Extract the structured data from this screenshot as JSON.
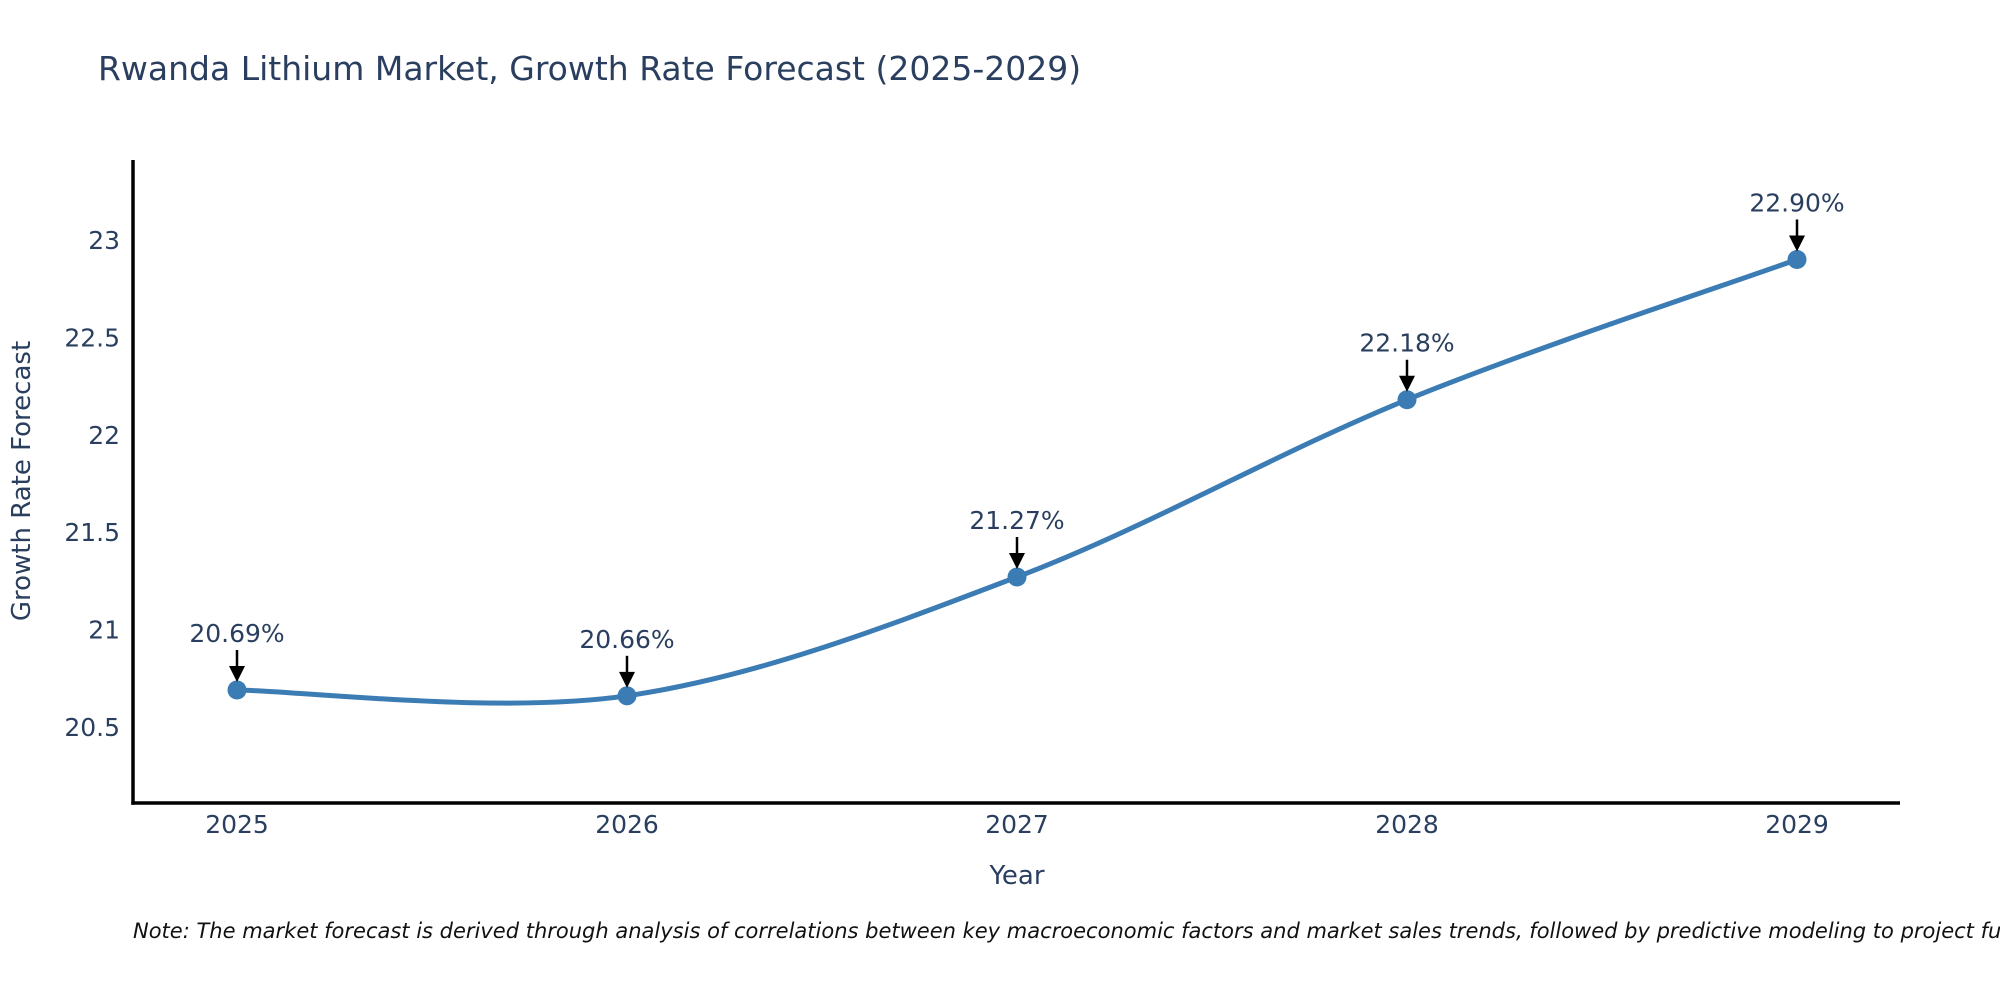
{
  "colors": {
    "title_text": "#2a3f5f",
    "tick_text": "#2a3f5f",
    "annotation_text": "#2a3f5f",
    "line": "#3c7cb4",
    "marker": "#3c7cb4",
    "axis_line": "#000000",
    "arrow": "#000000",
    "note_text": "#111111",
    "background": "#ffffff"
  },
  "note": "Note: The market forecast is derived through analysis of correlations between key macroeconomic factors and market sales trends, followed by predictive modeling to project future sal",
  "chart_data": {
    "type": "line",
    "title": "Rwanda Lithium Market, Growth Rate Forecast (2025-2029)",
    "xlabel": "Year",
    "ylabel": "Growth Rate Forecast",
    "x": [
      2025,
      2026,
      2027,
      2028,
      2029
    ],
    "values": [
      20.69,
      20.66,
      21.27,
      22.18,
      22.9
    ],
    "point_labels": [
      "20.69%",
      "20.66%",
      "21.27%",
      "22.18%",
      "22.90%"
    ],
    "x_tick_labels": [
      "2025",
      "2026",
      "2027",
      "2028",
      "2029"
    ],
    "y_ticks": [
      20.5,
      21,
      21.5,
      22,
      22.5,
      23
    ],
    "y_tick_labels": [
      "20.5",
      "21",
      "21.5",
      "22",
      "22.5",
      "23"
    ],
    "xlim": [
      2024.73,
      2029.26
    ],
    "ylim": [
      20.11,
      23.41
    ],
    "grid": false,
    "legend": false,
    "line_shape": "spline",
    "marker_style": "circle",
    "annotation_style": "value-labels-with-down-arrows"
  }
}
